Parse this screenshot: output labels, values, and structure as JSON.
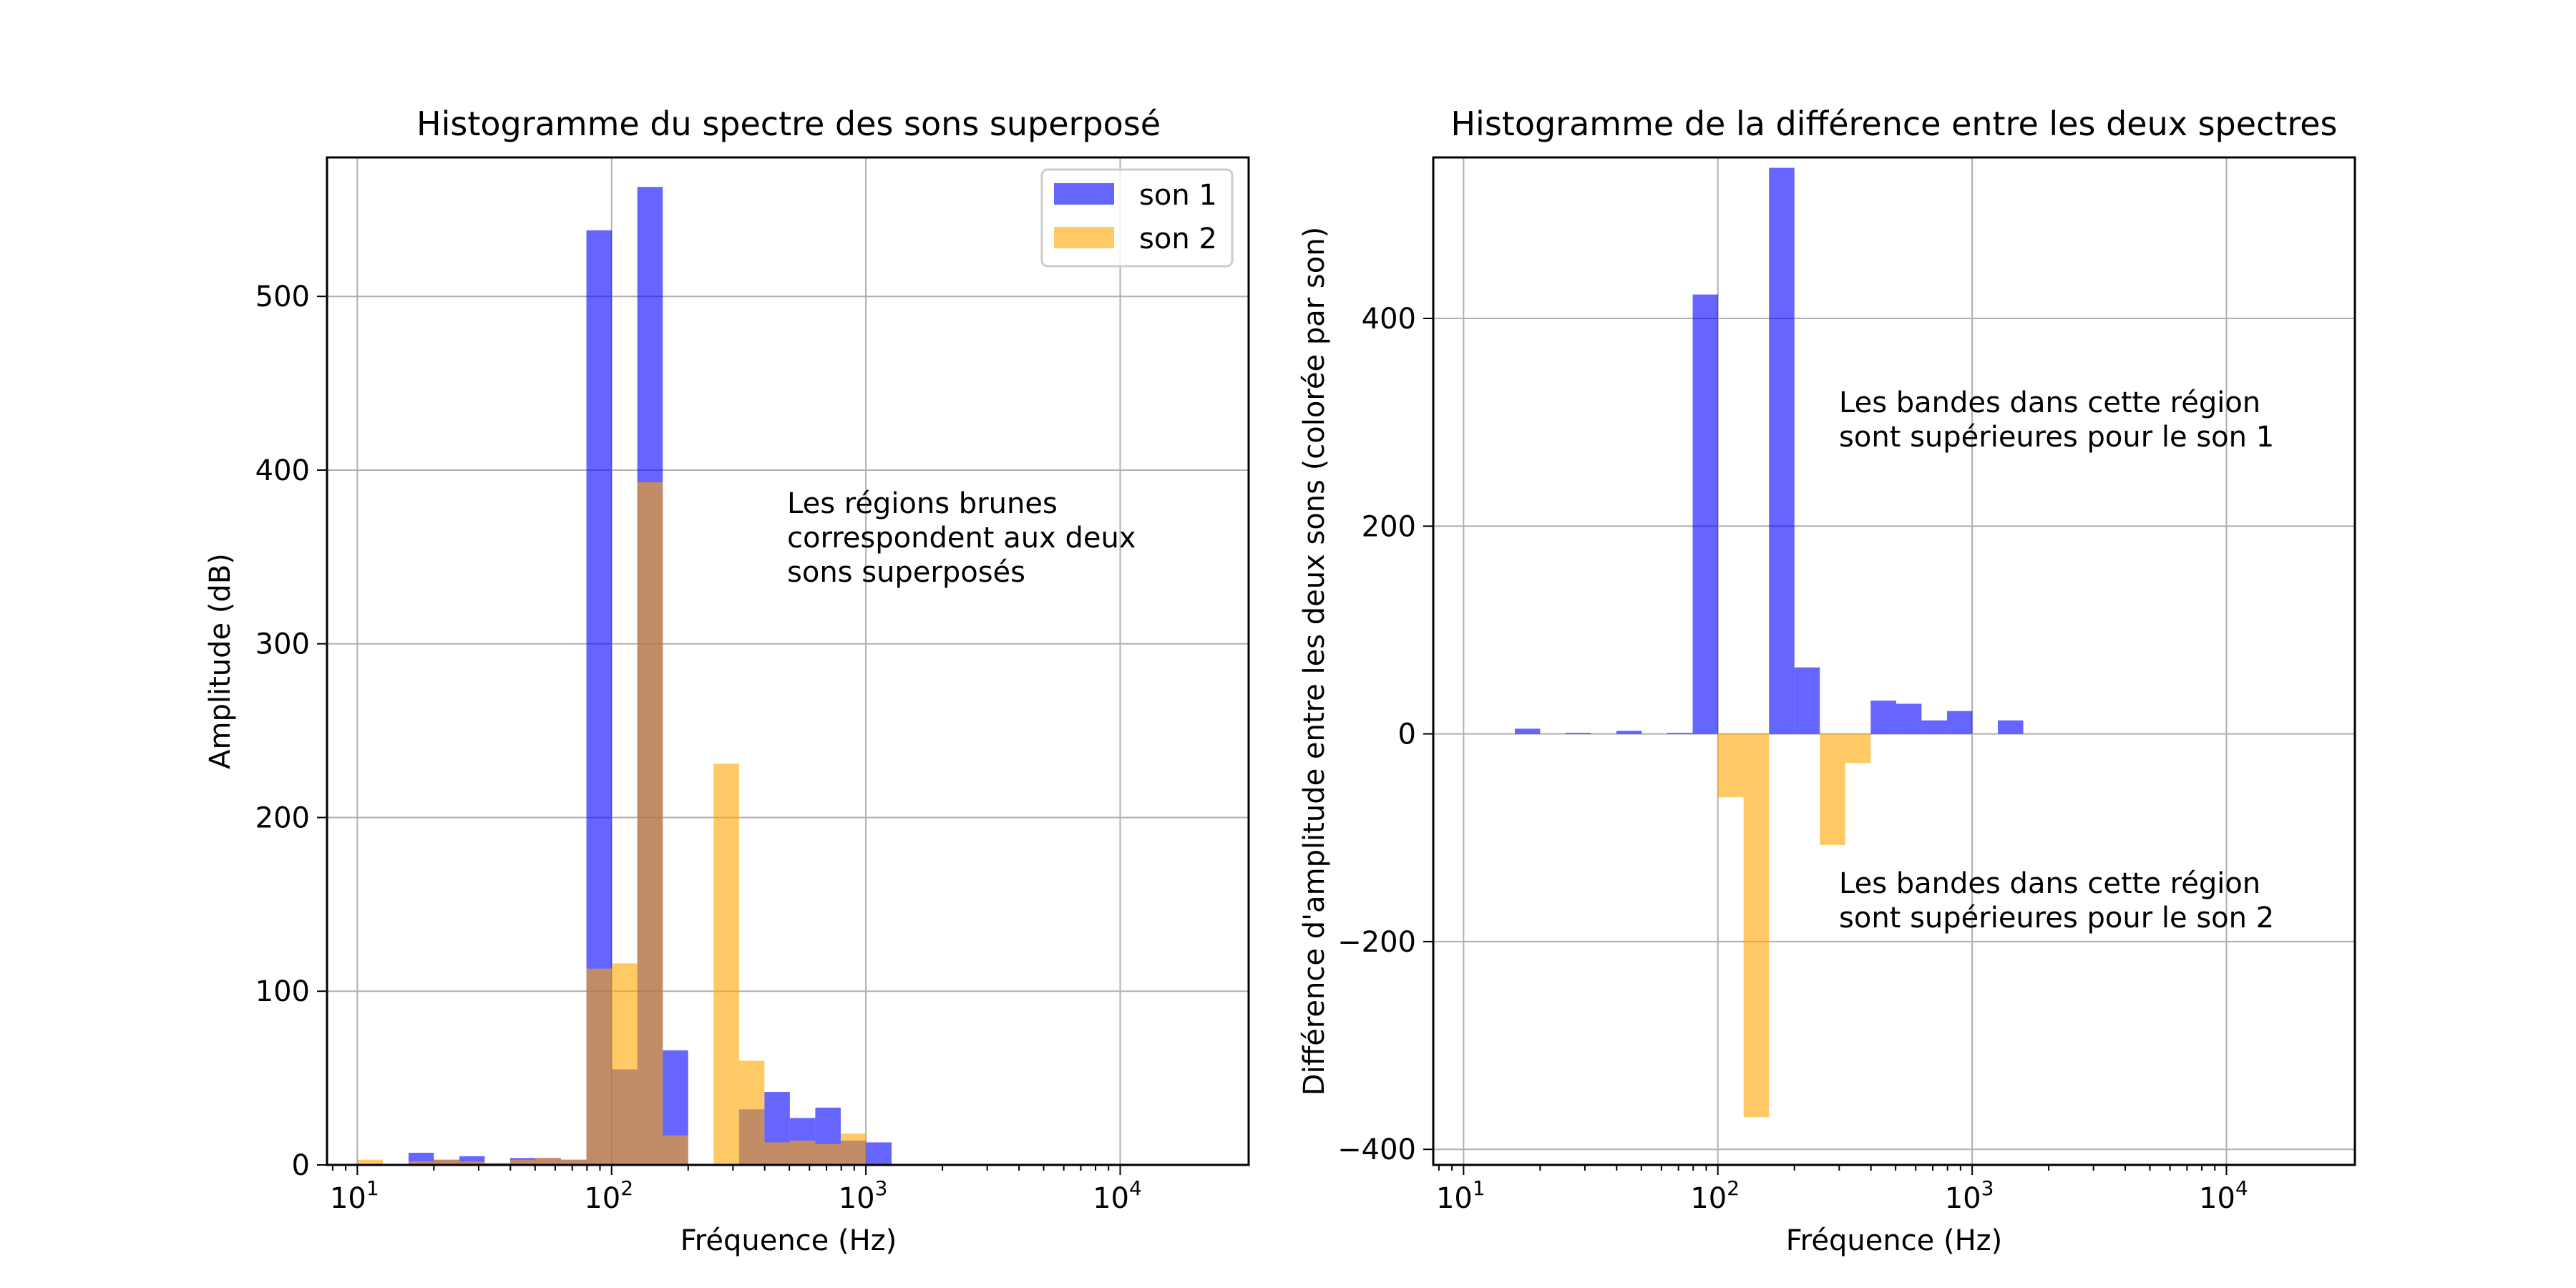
{
  "chart_data": [
    {
      "type": "bar",
      "title": "Histogramme du spectre des sons superposé",
      "xlabel": "Fréquence (Hz)",
      "ylabel": "Amplitude (dB)",
      "xscale": "log",
      "xlim": [
        7.6,
        32000
      ],
      "ylim": [
        0,
        580
      ],
      "grid": true,
      "xticks": [
        10,
        100,
        1000,
        10000
      ],
      "xtick_labels": [
        {
          "base": "10",
          "exp": "1"
        },
        {
          "base": "10",
          "exp": "2"
        },
        {
          "base": "10",
          "exp": "3"
        },
        {
          "base": "10",
          "exp": "4"
        }
      ],
      "yticks": [
        0,
        100,
        200,
        300,
        400,
        500
      ],
      "bin_edges": [
        10.0,
        12.6,
        15.9,
        20.0,
        25.2,
        31.7,
        39.9,
        50.2,
        63.2,
        79.6,
        100.2,
        126.2,
        158.9,
        200.0,
        251.8,
        317.0,
        399.1,
        502.4,
        632.5,
        796.3,
        1002.5,
        1262.0,
        1588.8,
        2000.2
      ],
      "series": [
        {
          "name": "son 1",
          "color": "#0000ff",
          "opacity": 0.6,
          "values": [
            0,
            0,
            7,
            3,
            5,
            1,
            4,
            4,
            3,
            538,
            55,
            563,
            66,
            0,
            0,
            32,
            42,
            27,
            33,
            14,
            13,
            0,
            0
          ]
        },
        {
          "name": "son 2",
          "color": "#ffa500",
          "opacity": 0.6,
          "values": [
            3,
            0,
            2,
            3,
            2,
            1,
            3,
            4,
            3,
            113,
            116,
            393,
            17,
            0,
            231,
            60,
            13,
            14,
            12,
            18,
            0,
            0,
            0
          ]
        }
      ],
      "legend": {
        "position": "top-right",
        "entries": [
          "son 1",
          "son 2"
        ]
      },
      "annotations": [
        "Les régions brunes",
        "correspondent aux deux",
        "sons superposés"
      ]
    },
    {
      "type": "bar",
      "title": "Histogramme de la différence entre les deux spectres",
      "xlabel": "Fréquence (Hz)",
      "ylabel": "Différence d'amplitude entre les deux sons (colorée par son)",
      "xscale": "log",
      "xlim": [
        7.6,
        32000
      ],
      "ylim": [
        -415,
        555
      ],
      "grid": true,
      "xticks": [
        10,
        100,
        1000,
        10000
      ],
      "xtick_labels": [
        {
          "base": "10",
          "exp": "1"
        },
        {
          "base": "10",
          "exp": "2"
        },
        {
          "base": "10",
          "exp": "3"
        },
        {
          "base": "10",
          "exp": "4"
        }
      ],
      "yticks": [
        -400,
        -200,
        0,
        200,
        400
      ],
      "bin_edges": [
        10.0,
        12.6,
        15.9,
        20.0,
        25.2,
        31.7,
        39.9,
        50.2,
        63.2,
        79.6,
        100.2,
        126.2,
        158.9,
        200.0,
        251.8,
        317.0,
        399.1,
        502.4,
        632.5,
        796.3,
        1002.5,
        1262.0,
        1588.8,
        2000.2
      ],
      "values": [
        0,
        0,
        5,
        0,
        1,
        0,
        3,
        0,
        1,
        423,
        -61,
        -369,
        545,
        64,
        -107,
        -28,
        32,
        29,
        13,
        22,
        0,
        13,
        0
      ],
      "positive_color": "#0000ff",
      "negative_color": "#ffa500",
      "opacity": 0.6,
      "annotations": [
        [
          "Les bandes dans cette région",
          "sont supérieures pour le son 1"
        ],
        [
          "Les bandes dans cette région",
          "sont supérieures pour le son 2"
        ]
      ]
    }
  ]
}
